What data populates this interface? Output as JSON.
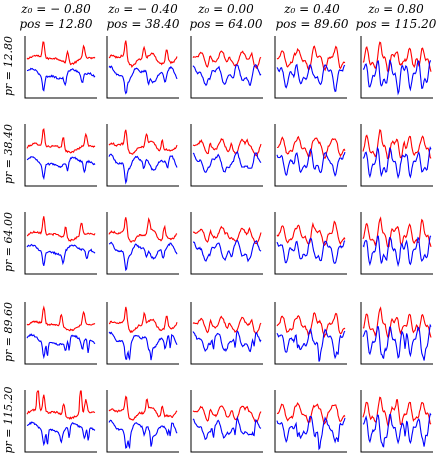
{
  "chart_data": {
    "type": "line",
    "layout": "small-multiples-5x5",
    "column_headers": [
      {
        "line1": "z₀ = − 0.80",
        "line2": "pos = 12.80"
      },
      {
        "line1": "z₀ = − 0.40",
        "line2": "pos = 38.40"
      },
      {
        "line1": "z₀ = 0.00",
        "line2": "pos = 64.00"
      },
      {
        "line1": "z₀ = 0.40",
        "line2": "pos = 89.60"
      },
      {
        "line1": "z₀ = 0.80",
        "line2": "pos = 115.20"
      }
    ],
    "row_labels": [
      "pr = 12.80",
      "pr = 38.40",
      "pr = 64.00",
      "pr = 89.60",
      "pr = 115.20"
    ],
    "series": [
      {
        "color": "#ff0000"
      },
      {
        "color": "#0000ff"
      }
    ],
    "axes": {
      "ticks": false,
      "visible_spines": [
        "left",
        "bottom"
      ]
    }
  }
}
